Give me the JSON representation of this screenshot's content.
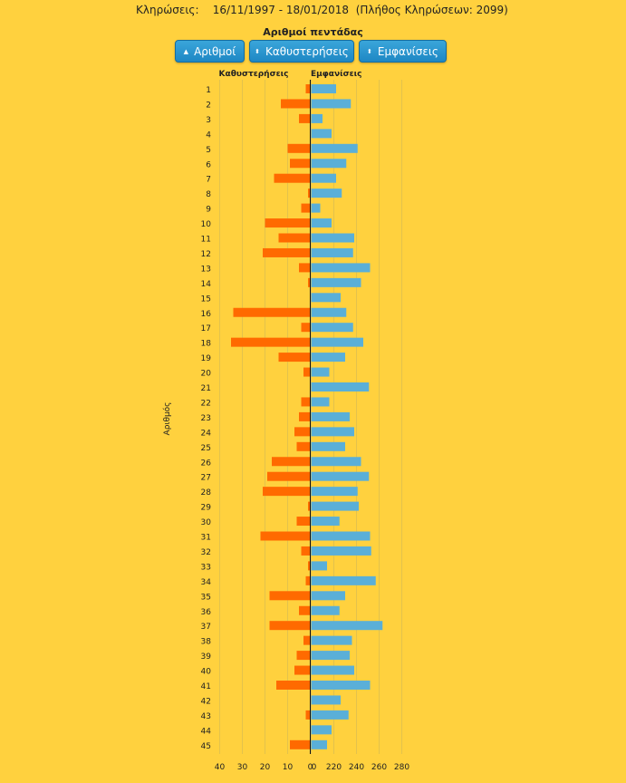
{
  "header": {
    "label": "Κληρώσεις:",
    "range": "16/11/1997 - 18/01/2018",
    "count_text": "(Πλήθος Κληρώσεων: 2099)"
  },
  "controls": {
    "btn_numbers": "Αριθμοί",
    "btn_delays": "Καθυστερήσεις",
    "btn_appearances": "Εμφανίσεις"
  },
  "chart_data": {
    "type": "bar",
    "title": "Αριθμοί πεντάδας",
    "ylabel": "Αριθμός",
    "orientation": "horizontal-butterfly",
    "categories": [
      "1",
      "2",
      "3",
      "4",
      "5",
      "6",
      "7",
      "8",
      "9",
      "10",
      "11",
      "12",
      "13",
      "14",
      "15",
      "16",
      "17",
      "18",
      "19",
      "20",
      "21",
      "22",
      "23",
      "24",
      "25",
      "26",
      "27",
      "28",
      "29",
      "30",
      "31",
      "32",
      "33",
      "34",
      "35",
      "36",
      "37",
      "38",
      "39",
      "40",
      "41",
      "42",
      "43",
      "44",
      "45"
    ],
    "series": [
      {
        "name": "Καθυστερήσεις",
        "color": "#FF6A00",
        "side": "left",
        "xlim": [
          0,
          40
        ],
        "ticks": [
          40,
          30,
          20,
          10,
          0
        ],
        "values": [
          2,
          13,
          5,
          0,
          10,
          9,
          16,
          1,
          4,
          20,
          14,
          21,
          5,
          1,
          0,
          34,
          4,
          35,
          14,
          3,
          0,
          4,
          5,
          7,
          6,
          17,
          19,
          21,
          1,
          6,
          22,
          4,
          1,
          2,
          18,
          5,
          18,
          3,
          6,
          7,
          15,
          0,
          2,
          0,
          9
        ]
      },
      {
        "name": "Εμφανίσεις",
        "color": "#5AAFD8",
        "side": "right",
        "xlim": [
          200,
          280
        ],
        "ticks": [
          0,
          220,
          240,
          260,
          280
        ],
        "values": [
          222,
          235,
          210,
          218,
          241,
          231,
          222,
          227,
          208,
          218,
          238,
          237,
          252,
          244,
          226,
          231,
          237,
          246,
          230,
          216,
          251,
          216,
          234,
          238,
          230,
          244,
          251,
          241,
          242,
          225,
          252,
          253,
          214,
          257,
          230,
          225,
          263,
          236,
          234,
          238,
          252,
          226,
          233,
          218,
          214
        ]
      }
    ]
  }
}
